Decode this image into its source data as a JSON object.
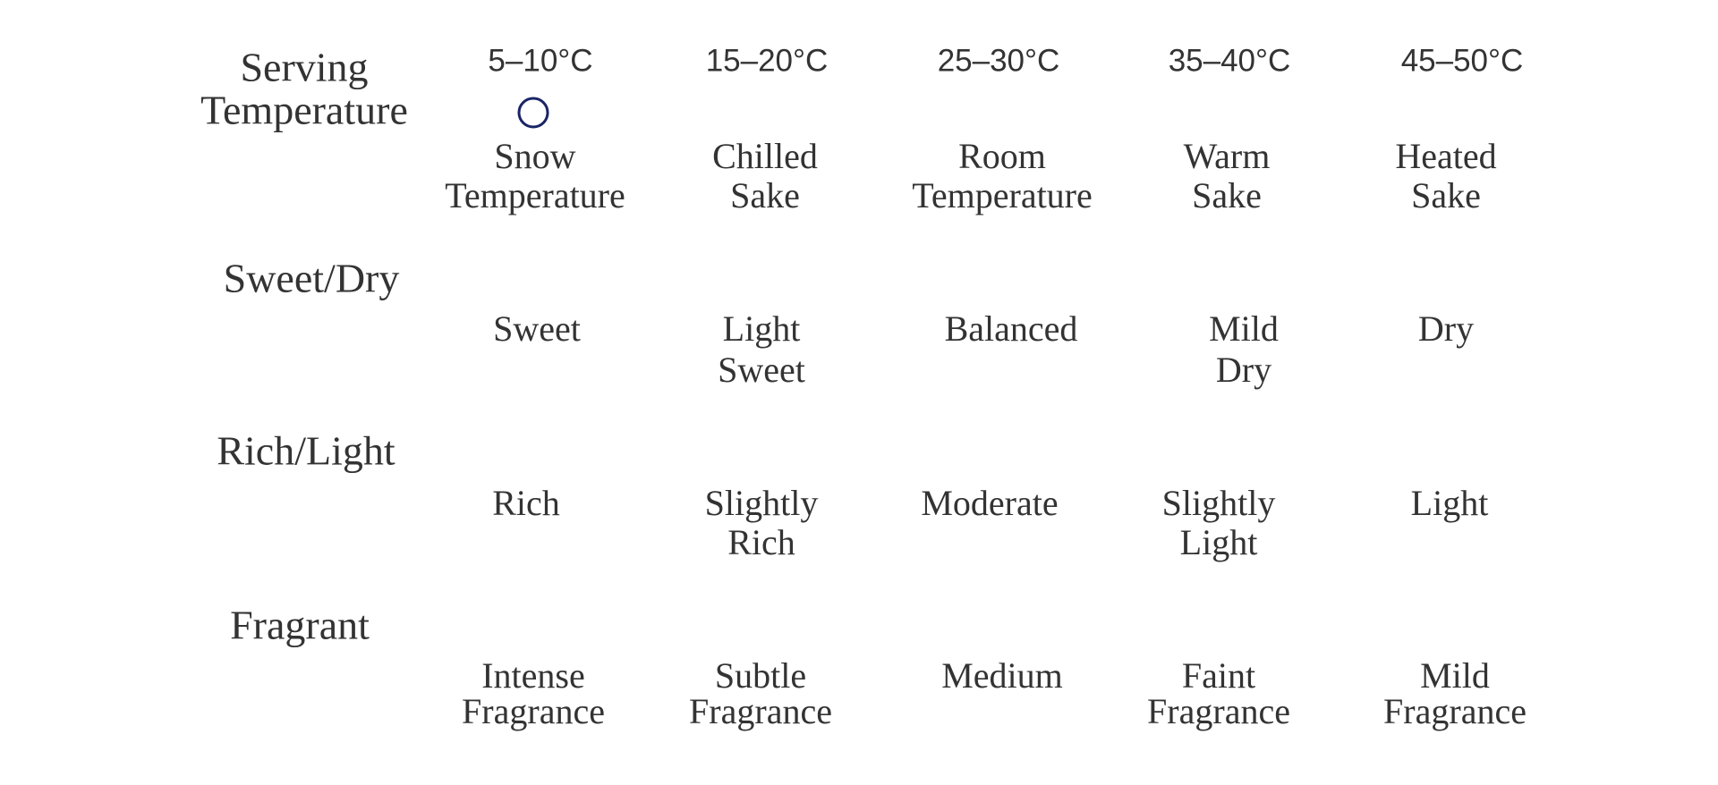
{
  "rows": [
    {
      "label": [
        "Serving",
        "Temperature"
      ],
      "ticks": [
        "5–10°C",
        "15–20°C",
        "25–30°C",
        "35–40°C",
        "45–50°C"
      ],
      "options": [
        [
          "Snow",
          "Temperature"
        ],
        [
          "Chilled",
          "Sake"
        ],
        [
          "Room",
          "Temperature"
        ],
        [
          "Warm",
          "Sake"
        ],
        [
          "Heated",
          "Sake"
        ]
      ]
    },
    {
      "label": [
        "Sweet/Dry"
      ],
      "options": [
        [
          "Sweet"
        ],
        [
          "Light",
          "Sweet"
        ],
        [
          "Balanced"
        ],
        [
          "Mild",
          "Dry"
        ],
        [
          "Dry"
        ]
      ]
    },
    {
      "label": [
        "Rich/Light"
      ],
      "options": [
        [
          "Rich"
        ],
        [
          "Slightly",
          "Rich"
        ],
        [
          "Moderate"
        ],
        [
          "Slightly",
          "Light"
        ],
        [
          "Light"
        ]
      ]
    },
    {
      "label": [
        "Fragrant"
      ],
      "options": [
        [
          "Intense",
          "Fragrance"
        ],
        [
          "Subtle",
          "Fragrance"
        ],
        [
          "Medium"
        ],
        [
          "Faint",
          "Fragrance"
        ],
        [
          "Mild",
          "Fragrance"
        ]
      ]
    }
  ]
}
